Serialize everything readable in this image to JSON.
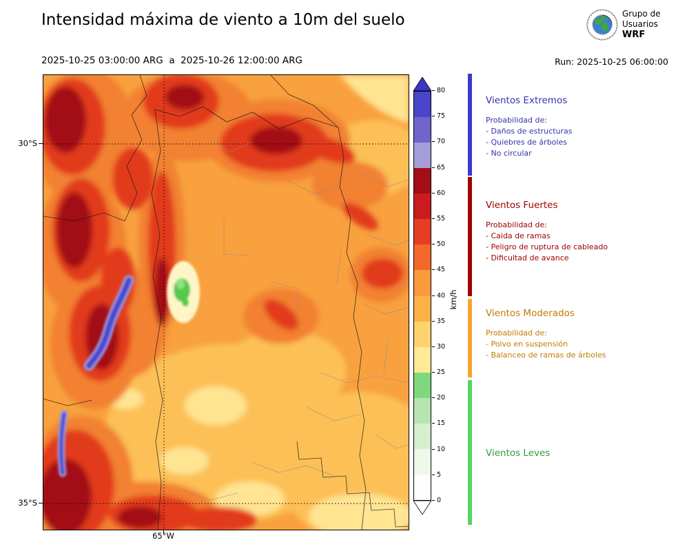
{
  "header": {
    "title": "Intensidad máxima de viento a 10m del suelo",
    "period": "2025-10-25 03:00:00 ARG  a  2025-10-26 12:00:00 ARG",
    "run": "Run: 2025-10-25 06:00:00",
    "logo": {
      "line1": "Grupo de",
      "line2": "Usuarios",
      "line3": "WRF"
    }
  },
  "map": {
    "lat_ticks": [
      "30°S",
      "35°S"
    ],
    "lon_ticks": [
      "65°W"
    ]
  },
  "colorbar": {
    "unit": "km/h",
    "ticks": [
      0,
      5,
      10,
      15,
      20,
      25,
      30,
      35,
      40,
      45,
      50,
      55,
      60,
      65,
      70,
      75,
      80
    ],
    "max": 80,
    "segment_colors": [
      "#fdfefc",
      "#edf8e9",
      "#d5efcf",
      "#b7e4af",
      "#7fd87f",
      "#ffea96",
      "#fed36e",
      "#fcb247",
      "#f99a3c",
      "#f4692b",
      "#e73d23",
      "#ca1c1e",
      "#a30e16",
      "#a49dd8",
      "#6f65cd",
      "#4a46c9"
    ],
    "arrow_top_color": "#3a36c4",
    "arrow_bottom_color": "#ffffff"
  },
  "legend": {
    "sections": [
      {
        "title": "Vientos Extremos",
        "text_color": "#3333aa",
        "bar_color": "#3b38cf",
        "prob": "Probabilidad de:",
        "items": [
          "- Daños de estructuras",
          "- Quiebres de árboles",
          "- No circular"
        ]
      },
      {
        "title": "Vientos Fuertes",
        "text_color": "#a00000",
        "bar_color": "#a00000",
        "prob": "Probabilidad de:",
        "items": [
          "- Caida de ramas",
          "- Peligro de ruptura de cableado",
          "- Dificultad de avance"
        ]
      },
      {
        "title": "Vientos Moderados",
        "text_color": "#c17a00",
        "bar_color": "#f9a430",
        "prob": "Probabilidad de:",
        "items": [
          "- Polvo en suspensión",
          "- Balanceo de ramas de árboles"
        ]
      },
      {
        "title": "Vientos Leves",
        "text_color": "#2f9e3f",
        "bar_color": "#55d45f",
        "prob": "",
        "items": []
      }
    ]
  }
}
